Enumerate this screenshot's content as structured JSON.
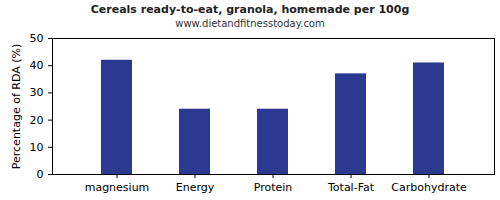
{
  "chart_data": {
    "type": "bar",
    "title": "Cereals ready-to-eat, granola, homemade per 100g",
    "subtitle": "www.dietandfitnesstoday.com",
    "y_label": "Percentage of RDA (%)",
    "categories": [
      "magnesium",
      "Energy",
      "Protein",
      "Total-Fat",
      "Carbohydrate"
    ],
    "values": [
      42,
      24,
      24,
      37,
      41
    ],
    "color": "#2b3990",
    "ylim": [
      0,
      50
    ],
    "yticks": [
      0,
      10,
      20,
      30,
      40,
      50
    ],
    "grid": false
  }
}
